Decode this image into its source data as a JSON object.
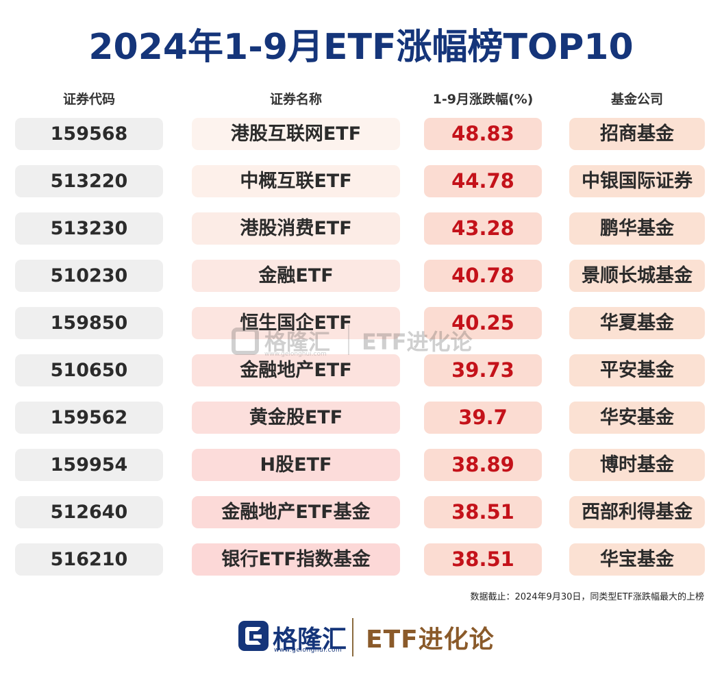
{
  "title": "2024年1-9月ETF涨幅榜TOP10",
  "headers": {
    "code": "证券代码",
    "name": "证券名称",
    "change": "1-9月涨跌幅(%)",
    "company": "基金公司"
  },
  "rows": [
    {
      "code": "159568",
      "name": "港股互联网ETF",
      "change": "48.83",
      "company": "招商基金"
    },
    {
      "code": "513220",
      "name": "中概互联ETF",
      "change": "44.78",
      "company": "中银国际证券"
    },
    {
      "code": "513230",
      "name": "港股消费ETF",
      "change": "43.28",
      "company": "鹏华基金"
    },
    {
      "code": "510230",
      "name": "金融ETF",
      "change": "40.78",
      "company": "景顺长城基金"
    },
    {
      "code": "159850",
      "name": "恒生国企ETF",
      "change": "40.25",
      "company": "华夏基金"
    },
    {
      "code": "510650",
      "name": "金融地产ETF",
      "change": "39.73",
      "company": "平安基金"
    },
    {
      "code": "159562",
      "name": "黄金股ETF",
      "change": "39.7",
      "company": "华安基金"
    },
    {
      "code": "159954",
      "name": "H股ETF",
      "change": "38.89",
      "company": "博时基金"
    },
    {
      "code": "512640",
      "name": "金融地产ETF基金",
      "change": "38.51",
      "company": "西部利得基金"
    },
    {
      "code": "516210",
      "name": "银行ETF指数基金",
      "change": "38.51",
      "company": "华宝基金"
    }
  ],
  "name_cell_colors": [
    "#fdf3ee",
    "#fdf0ea",
    "#fcece6",
    "#fce8e3",
    "#fce5e0",
    "#fce2de",
    "#fcdfdc",
    "#fcdcda",
    "#fcdad8",
    "#fcd8d7"
  ],
  "colors": {
    "title": "#15357a",
    "change_text": "#c4121a",
    "change_bg": "#fbdcd2",
    "company_bg": "#fbe1d3",
    "code_bg": "#efefef"
  },
  "watermark": {
    "brand": "格隆汇",
    "url": "www.gelonghui.com",
    "etf": "ETF进化论"
  },
  "footnote": "数据截止：2024年9月30日，同类型ETF涨跌幅最大的上榜",
  "footer": {
    "brand": "格隆汇",
    "url": "www.gelonghui.com",
    "etf": "ETF进化论",
    "logo_icon": "gelonghui-logo-icon"
  }
}
